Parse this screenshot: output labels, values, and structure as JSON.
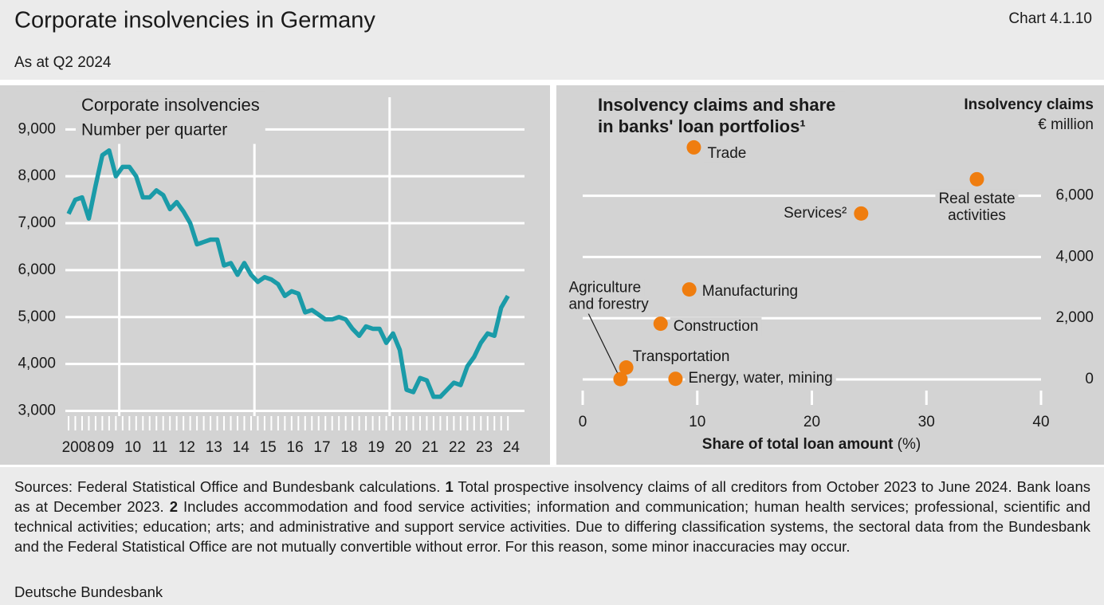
{
  "header": {
    "title": "Corporate insolvencies in Germany",
    "chart_id": "Chart 4.1.10",
    "subtitle": "As at Q2 2024"
  },
  "chart_data": [
    {
      "type": "line",
      "title": "Corporate insolvencies",
      "subtitle": "Number per quarter",
      "categories": [
        "2008",
        null,
        null,
        null,
        "09",
        null,
        null,
        null,
        "10",
        null,
        null,
        null,
        "11",
        null,
        null,
        null,
        "12",
        null,
        null,
        null,
        "13",
        null,
        null,
        null,
        "14",
        null,
        null,
        null,
        "15",
        null,
        null,
        null,
        "16",
        null,
        null,
        null,
        "17",
        null,
        null,
        null,
        "18",
        null,
        null,
        null,
        "19",
        null,
        null,
        null,
        "20",
        null,
        null,
        null,
        "21",
        null,
        null,
        null,
        "22",
        null,
        null,
        null,
        "23",
        null,
        null,
        null,
        "24",
        null
      ],
      "series": [
        {
          "color": "#1a9ba8",
          "values": [
            7200,
            7500,
            7550,
            7100,
            7800,
            8450,
            8550,
            8000,
            8200,
            8200,
            8000,
            7550,
            7550,
            7700,
            7600,
            7300,
            7450,
            7250,
            7000,
            6550,
            6600,
            6650,
            6650,
            6100,
            6150,
            5900,
            6150,
            5900,
            5750,
            5850,
            5800,
            5700,
            5450,
            5550,
            5500,
            5100,
            5150,
            5050,
            4950,
            4950,
            5000,
            4950,
            4750,
            4600,
            4800,
            4750,
            4750,
            4450,
            4650,
            4300,
            3450,
            3400,
            3700,
            3650,
            3300,
            3300,
            3450,
            3600,
            3550,
            3950,
            4150,
            4450,
            4650,
            4600,
            5200,
            5450
          ]
        }
      ],
      "ylim": [
        2600,
        9600
      ],
      "yticks": [
        {
          "value": 3000,
          "label": "3,000"
        },
        {
          "value": 4000,
          "label": "4,000"
        },
        {
          "value": 5000,
          "label": "5,000"
        },
        {
          "value": 6000,
          "label": "6,000"
        },
        {
          "value": 7000,
          "label": "7,000"
        },
        {
          "value": 8000,
          "label": "8,000"
        },
        {
          "value": 9000,
          "label": "9,000"
        }
      ],
      "grid": true
    },
    {
      "type": "scatter",
      "title": [
        "Insolvency claims and share",
        "in banks' loan portfolios¹"
      ],
      "ylabel": [
        "Insolvency claims",
        "€ million"
      ],
      "xlabel": "Share of total loan amount",
      "xunit": "(%)",
      "labels": [
        [
          "Trade"
        ],
        [
          "Real estate",
          "activities"
        ],
        [
          "Services²"
        ],
        [
          "Manufacturing"
        ],
        [
          "Construction"
        ],
        [
          "Transportation"
        ],
        [
          "Agriculture",
          "and forestry"
        ],
        [
          "Energy, water, mining"
        ]
      ],
      "x": [
        9.7,
        34.4,
        24.3,
        9.3,
        6.8,
        3.8,
        3.3,
        8.1
      ],
      "values": [
        7580,
        6540,
        5420,
        2940,
        1820,
        390,
        10,
        20
      ],
      "color": "#ef7d0f",
      "xlim": [
        0,
        40
      ],
      "xticks": [
        0,
        10,
        20,
        30,
        40
      ],
      "ylim": [
        -400,
        9000
      ],
      "yticks": [
        0,
        {
          "value": 2000,
          "label": "2,000"
        },
        {
          "value": 4000,
          "label": "4,000"
        },
        {
          "value": 6000,
          "label": "6,000"
        }
      ],
      "grid": true
    }
  ],
  "footer": {
    "sources": "Sources: Federal Statistical Office and Bundesbank calculations.",
    "notes": [
      {
        "marker": "1",
        "text": "Total prospective insolvency claims of all creditors from October 2023 to June 2024. Bank loans as at December 2023."
      },
      {
        "marker": "2",
        "text": "Includes accommodation and food service activities; information and communication; human health services; professional, scientific and technical activities; education; arts; and administrative and support service activities. Due to differing classification systems, the sectoral data from the Bundesbank and the Federal Statistical Office are not mutually convertible without error. For this reason, some minor inaccuracies may occur."
      }
    ],
    "organisation": "Deutsche Bundesbank"
  }
}
